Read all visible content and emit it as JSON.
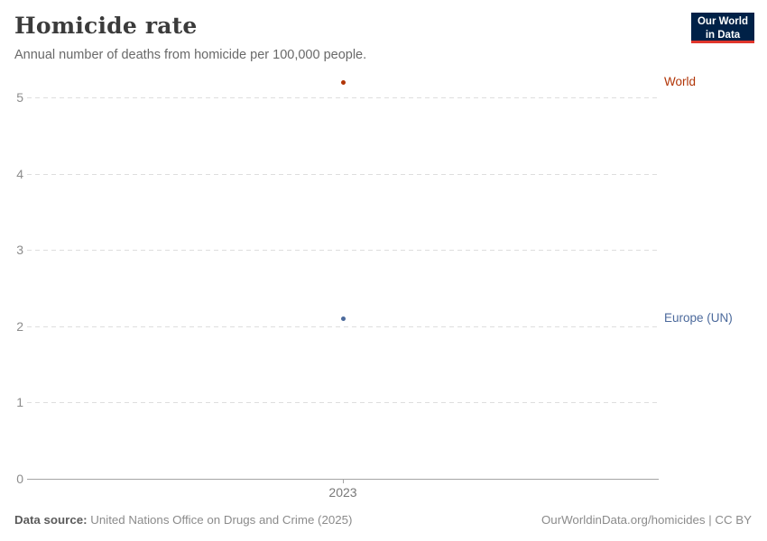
{
  "header": {
    "title": "Homicide rate",
    "subtitle": "Annual number of deaths from homicide per 100,000 people."
  },
  "logo": {
    "line1": "Our World",
    "line2": "in Data",
    "bg_color": "#002147",
    "accent_color": "#e0362c"
  },
  "chart_data": {
    "type": "scatter",
    "title": "Homicide rate",
    "subtitle": "Annual number of deaths from homicide per 100,000 people.",
    "x": [
      2023
    ],
    "x_tick_label": "2023",
    "series": [
      {
        "name": "World",
        "values": [
          5.2
        ],
        "color": "#b13507"
      },
      {
        "name": "Europe (UN)",
        "values": [
          2.1
        ],
        "color": "#4c6a9c"
      }
    ],
    "xlabel": "",
    "ylabel": "",
    "ylim": [
      0,
      5
    ],
    "y_ticks": [
      0,
      1,
      2,
      3,
      4,
      5
    ],
    "grid": true,
    "gridline_color": "#dedede",
    "axis_color": "#a5a5a5",
    "legend_position": "right-inline-labels"
  },
  "footer": {
    "data_source_label": "Data source:",
    "data_source_value": "United Nations Office on Drugs and Crime (2025)",
    "attribution": "OurWorldinData.org/homicides | CC BY"
  }
}
